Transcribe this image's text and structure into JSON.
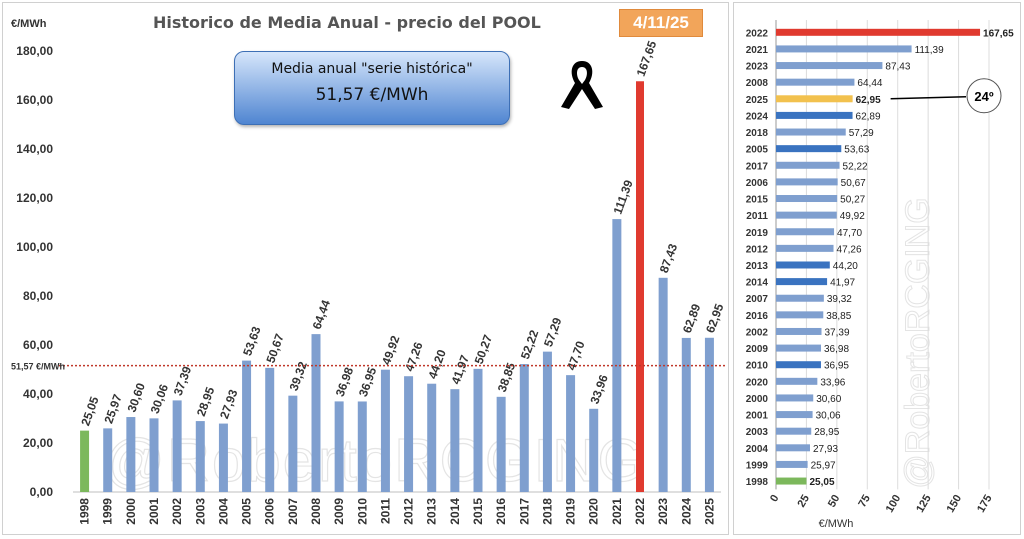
{
  "header": {
    "title": "Historico de Media Anual - precio del POOL",
    "date_badge": "4/11/25"
  },
  "avg_box": {
    "line1": "Media anual \"serie histórica\"",
    "line2": "51,57 €/MWh"
  },
  "watermark": "@RobertoRCGING",
  "colors": {
    "default": "#7f9fcf",
    "max": "#e03a2f",
    "min": "#7cb85c",
    "avg_line": "#c0392b",
    "highlight": "#f2c14e",
    "dark_bar": "#3a73c0"
  },
  "chart_data": [
    {
      "type": "bar",
      "orientation": "vertical",
      "categories": [
        "1998",
        "1999",
        "2000",
        "2001",
        "2002",
        "2003",
        "2004",
        "2005",
        "2006",
        "2007",
        "2008",
        "2009",
        "2010",
        "2011",
        "2012",
        "2013",
        "2014",
        "2015",
        "2016",
        "2017",
        "2018",
        "2019",
        "2020",
        "2021",
        "2022",
        "2023",
        "2024",
        "2025"
      ],
      "values": [
        25.05,
        25.97,
        30.6,
        30.06,
        37.39,
        28.95,
        27.93,
        53.63,
        50.67,
        39.32,
        64.44,
        36.98,
        36.95,
        49.92,
        47.26,
        44.2,
        41.97,
        50.27,
        38.85,
        52.22,
        57.29,
        47.7,
        33.96,
        111.39,
        167.65,
        87.43,
        62.89,
        62.95
      ],
      "value_labels": [
        "25,05",
        "25,97",
        "30,60",
        "30,06",
        "37,39",
        "28,95",
        "27,93",
        "53,63",
        "50,67",
        "39,32",
        "64,44",
        "36,98",
        "36,95",
        "49,92",
        "47,26",
        "44,20",
        "41,97",
        "50,27",
        "38,85",
        "52,22",
        "57,29",
        "47,70",
        "33,96",
        "111,39",
        "167,65",
        "87,43",
        "62,89",
        "62,95"
      ],
      "colors": [
        "min",
        "default",
        "default",
        "default",
        "default",
        "default",
        "default",
        "default",
        "default",
        "default",
        "default",
        "default",
        "default",
        "default",
        "default",
        "default",
        "default",
        "default",
        "default",
        "default",
        "default",
        "default",
        "default",
        "default",
        "max",
        "default",
        "default",
        "default"
      ],
      "title": "Historico de Media Anual - precio del POOL",
      "ylabel": "€/MWh",
      "ylim": [
        0,
        180
      ],
      "yticks": [
        0,
        20,
        40,
        60,
        80,
        100,
        120,
        140,
        160,
        180
      ],
      "ytick_labels": [
        "0,00",
        "20,00",
        "40,00",
        "60,00",
        "80,00",
        "100,00",
        "120,00",
        "140,00",
        "160,00",
        "180,00"
      ],
      "reference_line": {
        "value": 51.57,
        "label": "51,57 €/MWh"
      },
      "grid": false
    },
    {
      "type": "bar",
      "orientation": "horizontal",
      "categories": [
        "2022",
        "2021",
        "2023",
        "2008",
        "2025",
        "2024",
        "2018",
        "2005",
        "2017",
        "2006",
        "2015",
        "2011",
        "2019",
        "2012",
        "2013",
        "2014",
        "2007",
        "2016",
        "2002",
        "2009",
        "2010",
        "2020",
        "2000",
        "2001",
        "2003",
        "2004",
        "1999",
        "1998"
      ],
      "values": [
        167.65,
        111.39,
        87.43,
        64.44,
        62.95,
        62.89,
        57.29,
        53.63,
        52.22,
        50.67,
        50.27,
        49.92,
        47.7,
        47.26,
        44.2,
        41.97,
        39.32,
        38.85,
        37.39,
        36.98,
        36.95,
        33.96,
        30.6,
        30.06,
        28.95,
        27.93,
        25.97,
        25.05
      ],
      "value_labels": [
        "167,65",
        "111,39",
        "87,43",
        "64,44",
        "62,95",
        "62,89",
        "57,29",
        "53,63",
        "52,22",
        "50,67",
        "50,27",
        "49,92",
        "47,70",
        "47,26",
        "44,20",
        "41,97",
        "39,32",
        "38,85",
        "37,39",
        "36,98",
        "36,95",
        "33,96",
        "30,60",
        "30,06",
        "28,95",
        "27,93",
        "25,97",
        "25,05"
      ],
      "colors": [
        "max",
        "default",
        "default",
        "default",
        "highlight",
        "dark_bar",
        "default",
        "dark_bar",
        "default",
        "default",
        "default",
        "default",
        "default",
        "default",
        "dark_bar",
        "dark_bar",
        "default",
        "default",
        "default",
        "default",
        "dark_bar",
        "default",
        "default",
        "default",
        "default",
        "default",
        "default",
        "min"
      ],
      "bold_labels": [
        "2022",
        "2025",
        "1998"
      ],
      "xlabel": "€/MWh",
      "xlim": [
        0,
        175
      ],
      "xticks": [
        0,
        25,
        50,
        75,
        100,
        125,
        150,
        175
      ],
      "callout": {
        "category": "2025",
        "text": "24º"
      },
      "grid": true
    }
  ]
}
